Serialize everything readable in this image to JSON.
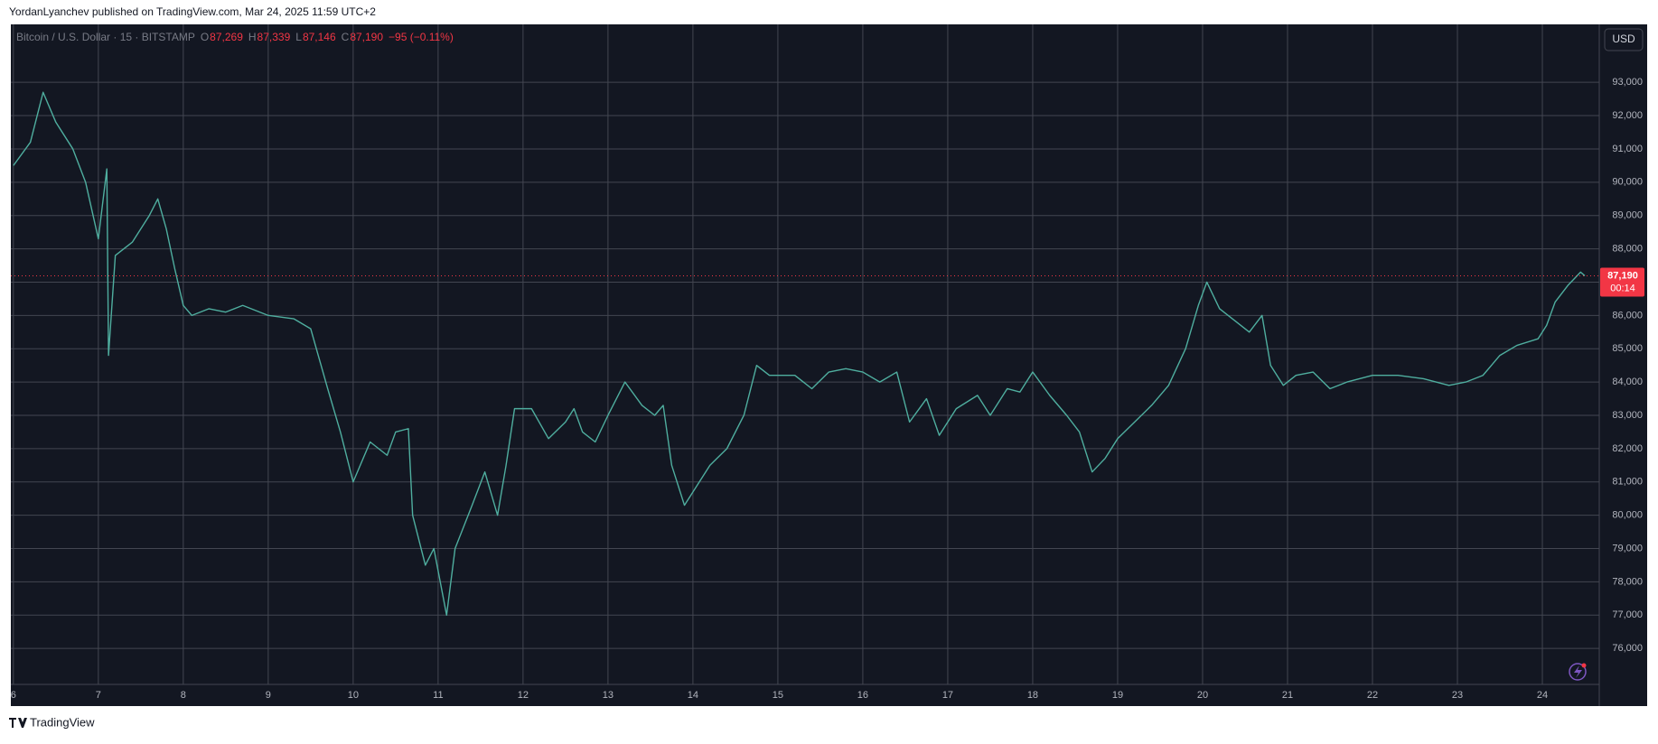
{
  "page": {
    "publisher": "YordanLyanchev published on TradingView.com, Mar 24, 2025 11:59 UTC+2",
    "brand": "TradingView",
    "currency_button": "USD"
  },
  "chart_data": {
    "type": "line",
    "symbol": "Bitcoin / U.S. Dollar · 15 · BITSTAMP",
    "ohlc": [
      {
        "key": "O",
        "text": "87,269"
      },
      {
        "key": "H",
        "text": "87,339"
      },
      {
        "key": "L",
        "text": "87,146"
      },
      {
        "key": "C",
        "text": "87,190"
      }
    ],
    "change": "−95 (−0.11%)",
    "x": [
      6.0,
      6.2,
      6.35,
      6.5,
      6.7,
      6.85,
      7.0,
      7.1,
      7.12,
      7.2,
      7.4,
      7.6,
      7.7,
      7.8,
      7.9,
      8.0,
      8.1,
      8.3,
      8.5,
      8.7,
      9.0,
      9.3,
      9.5,
      9.7,
      9.85,
      10.0,
      10.1,
      10.2,
      10.4,
      10.5,
      10.65,
      10.7,
      10.85,
      10.95,
      11.1,
      11.2,
      11.4,
      11.55,
      11.7,
      11.8,
      11.9,
      12.1,
      12.3,
      12.5,
      12.6,
      12.7,
      12.85,
      13.0,
      13.2,
      13.4,
      13.55,
      13.65,
      13.75,
      13.9,
      14.0,
      14.2,
      14.4,
      14.6,
      14.75,
      14.9,
      15.2,
      15.4,
      15.6,
      15.8,
      16.0,
      16.2,
      16.4,
      16.55,
      16.75,
      16.9,
      17.1,
      17.35,
      17.5,
      17.7,
      17.85,
      18.0,
      18.2,
      18.4,
      18.55,
      18.7,
      18.85,
      19.0,
      19.2,
      19.4,
      19.6,
      19.8,
      19.95,
      20.05,
      20.2,
      20.4,
      20.55,
      20.7,
      20.8,
      20.95,
      21.1,
      21.3,
      21.5,
      21.7,
      22.0,
      22.3,
      22.6,
      22.9,
      23.1,
      23.3,
      23.5,
      23.7,
      23.95,
      24.05,
      24.15,
      24.3,
      24.45,
      24.5
    ],
    "series": [
      {
        "name": "BTCUSD",
        "color": "#4fae9f",
        "values": [
          90500,
          91200,
          92700,
          91800,
          91000,
          90000,
          88300,
          90400,
          84800,
          87800,
          88200,
          89000,
          89500,
          88600,
          87400,
          86300,
          86000,
          86200,
          86100,
          86300,
          86000,
          85900,
          85600,
          83800,
          82500,
          81000,
          81600,
          82200,
          81800,
          82500,
          82600,
          80000,
          78500,
          79000,
          77000,
          79000,
          80300,
          81300,
          80000,
          81500,
          83200,
          83200,
          82300,
          82800,
          83200,
          82500,
          82200,
          83000,
          84000,
          83300,
          83000,
          83300,
          81500,
          80300,
          80700,
          81500,
          82000,
          83000,
          84500,
          84200,
          84200,
          83800,
          84300,
          84400,
          84300,
          84000,
          84300,
          82800,
          83500,
          82400,
          83200,
          83600,
          83000,
          83800,
          83700,
          84300,
          83600,
          83000,
          82500,
          81300,
          81700,
          82300,
          82800,
          83300,
          83900,
          85000,
          86300,
          87000,
          86200,
          85800,
          85500,
          86000,
          84500,
          83900,
          84200,
          84300,
          83800,
          84000,
          84200,
          84200,
          84100,
          83900,
          84000,
          84200,
          84800,
          85100,
          85300,
          85700,
          86400,
          86900,
          87300,
          87190
        ]
      }
    ],
    "xlim": [
      5.97,
      24.67
    ],
    "xticks": [
      6,
      7,
      8,
      9,
      10,
      11,
      12,
      13,
      14,
      15,
      16,
      17,
      18,
      19,
      20,
      21,
      22,
      23,
      24
    ],
    "ylim": [
      74920,
      94740
    ],
    "yticks": [
      {
        "value": 76000,
        "label": "76,000"
      },
      {
        "value": 77000,
        "label": "77,000"
      },
      {
        "value": 78000,
        "label": "78,000"
      },
      {
        "value": 79000,
        "label": "79,000"
      },
      {
        "value": 80000,
        "label": "80,000"
      },
      {
        "value": 81000,
        "label": "81,000"
      },
      {
        "value": 82000,
        "label": "82,000"
      },
      {
        "value": 83000,
        "label": "83,000"
      },
      {
        "value": 84000,
        "label": "84,000"
      },
      {
        "value": 85000,
        "label": "85,000"
      },
      {
        "value": 86000,
        "label": "86,000"
      },
      {
        "value": 87000,
        "label": "87,000"
      },
      {
        "value": 88000,
        "label": "88,000"
      },
      {
        "value": 89000,
        "label": "89,000"
      },
      {
        "value": 90000,
        "label": "90,000"
      },
      {
        "value": 91000,
        "label": "91,000"
      },
      {
        "value": 92000,
        "label": "92,000"
      },
      {
        "value": 93000,
        "label": "93,000"
      }
    ],
    "last_price": {
      "value": 87190,
      "label": "87,190",
      "countdown": "00:14",
      "color": "#f23645"
    },
    "grid": true
  }
}
